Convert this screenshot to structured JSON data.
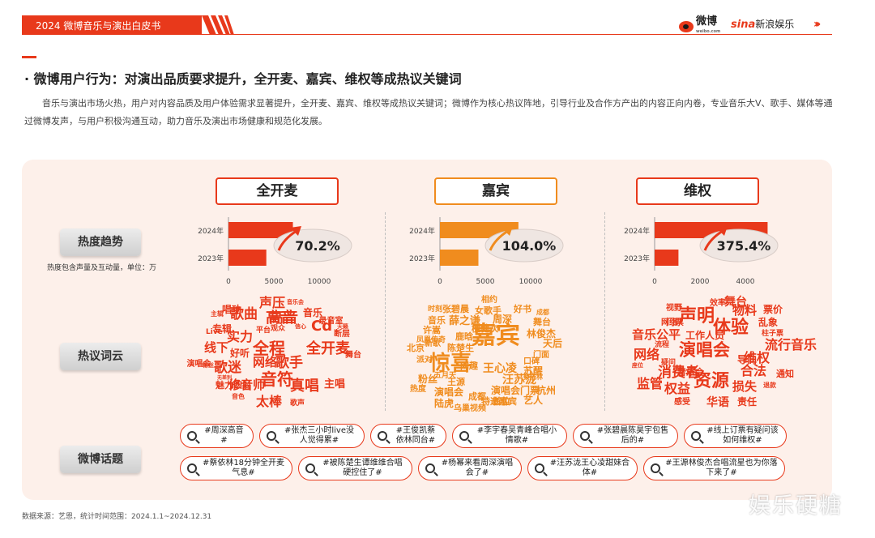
{
  "header": {
    "title": "2024 微博音乐与演出白皮书",
    "logo_weibo": "微博",
    "logo_weibo_sub": "weibo.com",
    "logo_sina_brand": "sina",
    "logo_sina_text": "新浪娱乐",
    "chevrons": "›››"
  },
  "headline": "· 微博用户行为：对演出品质要求提升，全开麦、嘉宾、维权等成热议关键词",
  "body": "音乐与演出市场火热，用户对内容品质及用户体验需求显著提升，全开麦、嘉宾、维权等成热议关键词；微博作为核心热议阵地，引导行业及合作方产出的内容正向内卷，专业音乐大V、歌手、媒体等通过微博发声，与用户积极沟通互动，助力音乐及演出市场健康和规范化发展。",
  "sections": {
    "trend": "热度趋势",
    "trend_note": "热度包含声量及互动量，单位：万",
    "cloud": "热议词云",
    "topics": "微博话题"
  },
  "keywords": [
    "全开麦",
    "嘉宾",
    "维权"
  ],
  "chart_data": [
    {
      "type": "bar",
      "orientation": "horizontal",
      "title": "全开麦",
      "categories": [
        "2024年",
        "2023年"
      ],
      "values": [
        7100,
        4170
      ],
      "ticks": [
        "0",
        "5000",
        "10000"
      ],
      "xlim": [
        0,
        11000
      ],
      "growth_label": "70.2%",
      "colors": {
        "2024年": "#e8391b",
        "2023年": "#e8391b"
      }
    },
    {
      "type": "bar",
      "orientation": "horizontal",
      "title": "嘉宾",
      "categories": [
        "2024年",
        "2023年"
      ],
      "values": [
        8650,
        4240
      ],
      "ticks": [
        "0",
        "5000",
        "10000"
      ],
      "xlim": [
        0,
        11000
      ],
      "growth_label": "104.0%",
      "colors": {
        "2024年": "#f08c1e",
        "2023年": "#f08c1e"
      }
    },
    {
      "type": "bar",
      "orientation": "horizontal",
      "title": "维权",
      "categories": [
        "2024年",
        "2023年"
      ],
      "values": [
        4980,
        1050
      ],
      "ticks": [
        "0",
        "2000",
        "4000"
      ],
      "xlim": [
        0,
        5200
      ],
      "growth_label": "375.4%",
      "colors": {
        "2024年": "#e8391b",
        "2023年": "#e8391b"
      }
    }
  ],
  "clouds": [
    {
      "color": "#e8391b",
      "words": [
        "主辑",
        "唱功",
        "歌曲",
        "声压",
        "音乐会",
        "音乐",
        "高音",
        "高音",
        "专辑",
        "实力",
        "平台",
        "Live",
        "观众",
        "信心",
        "Cd",
        "断层",
        "天籁",
        "线下",
        "好听",
        "全程",
        "全开麦",
        "舞台",
        "粉丝",
        "歌迷",
        "网络",
        "歌手",
        "无差别",
        "魅力四射",
        "修音师",
        "音符",
        "真唱",
        "主唱",
        "音色",
        "太棒",
        "歌声",
        "录音室",
        "演唱会"
      ]
    },
    {
      "color": "#f08c1e",
      "words": [
        "相约",
        "时刻",
        "张碧晨",
        "女歌手",
        "好书",
        "成都",
        "音乐",
        "薛之谦",
        "周深",
        "舞台",
        "檀健次",
        "许嵩",
        "鹿晗",
        "林俊杰",
        "凤凰传奇",
        "嘉宾",
        "天后",
        "北京",
        "新歌",
        "陈楚生",
        "门面",
        "派对",
        "惊喜",
        "网趣",
        "王心凌",
        "苏醒",
        "口碑",
        "蔡依林",
        "粉丝",
        "五月天",
        "王源",
        "汪苏泷",
        "热度",
        "演唱会",
        "演唱会门票",
        "杭州",
        "特邀嘉宾",
        "陆虎",
        "成都",
        "首位",
        "艺人",
        "乌巢视频"
      ]
    },
    {
      "color": "#e8391b",
      "words": [
        "效率",
        "舞台",
        "视野",
        "声明",
        "物料",
        "票价",
        "网络",
        "门票",
        "乱象",
        "音乐公平",
        "工作人员",
        "体验",
        "柱子票",
        "流程",
        "流行音乐",
        "网络",
        "演唱会",
        "导向",
        "维权",
        "疑问",
        "座位",
        "音乐会",
        "消费者",
        "合法",
        "通知",
        "监管",
        "权益",
        "资源",
        "损失",
        "退款",
        "感受",
        "华语",
        "责任"
      ]
    }
  ],
  "topics": [
    "#周深高音#",
    "#张杰三小时live没人觉得累#",
    "#王俊凯蔡依林同台#",
    "#李宇春吴青峰合唱小情歌#",
    "#张碧晨陈昊宇包售后的#",
    "#线上订票有疑问该如何维权#",
    "#蔡依林18分钟全开麦气息#",
    "#被陈楚生谭维维合唱硬控住了#",
    "#杨幂来看周深演唱会了#",
    "#汪苏泷王心凌甜妹合体#",
    "#王源林俊杰合唱流星也为你落下来了#"
  ],
  "footer": "数据来源：艺恩，统计时间范围：2024.1.1~2024.12.31",
  "watermark": "娱乐硬糖"
}
